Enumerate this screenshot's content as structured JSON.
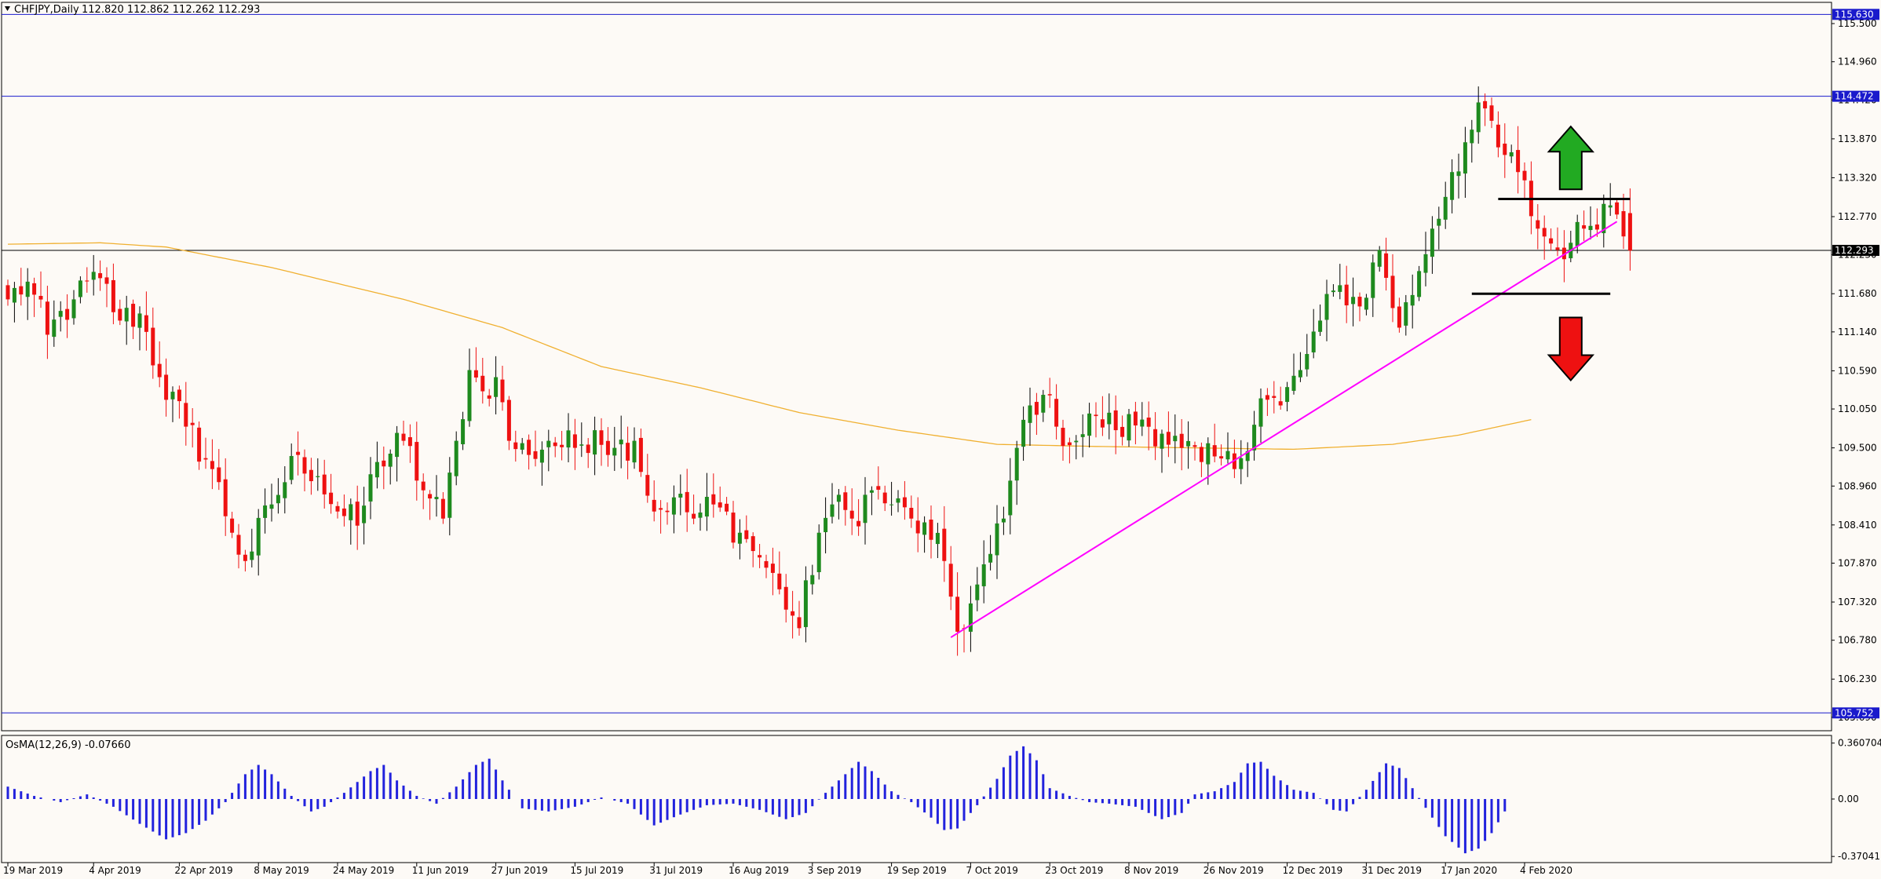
{
  "chart_data": {
    "type": "candlestick",
    "header": {
      "symbol": "CHFJPY,Daily",
      "ohlc": "112.820 112.862 112.262 112.293"
    },
    "indicator_label": "OsMA(12,26,9) -0.07660",
    "price_ylim": [
      105.5,
      115.8
    ],
    "price_ticks": [
      "115.500",
      "114.960",
      "114.420",
      "113.870",
      "113.320",
      "112.770",
      "112.230",
      "111.680",
      "111.140",
      "110.590",
      "110.050",
      "109.500",
      "108.960",
      "108.410",
      "107.870",
      "107.320",
      "106.780",
      "106.230",
      "105.690"
    ],
    "osma_ylim": [
      -0.41,
      0.41
    ],
    "osma_ticks": [
      "0.360704",
      "0.00",
      "-0.37041"
    ],
    "x_labels": [
      {
        "i": 0,
        "text": "19 Mar 2019"
      },
      {
        "i": 13,
        "text": "4 Apr 2019"
      },
      {
        "i": 26,
        "text": "22 Apr 2019"
      },
      {
        "i": 38,
        "text": "8 May 2019"
      },
      {
        "i": 50,
        "text": "24 May 2019"
      },
      {
        "i": 62,
        "text": "11 Jun 2019"
      },
      {
        "i": 74,
        "text": "27 Jun 2019"
      },
      {
        "i": 86,
        "text": "15 Jul 2019"
      },
      {
        "i": 98,
        "text": "31 Jul 2019"
      },
      {
        "i": 110,
        "text": "16 Aug 2019"
      },
      {
        "i": 122,
        "text": "3 Sep 2019"
      },
      {
        "i": 134,
        "text": "19 Sep 2019"
      },
      {
        "i": 146,
        "text": "7 Oct 2019"
      },
      {
        "i": 158,
        "text": "23 Oct 2019"
      },
      {
        "i": 170,
        "text": "8 Nov 2019"
      },
      {
        "i": 182,
        "text": "26 Nov 2019"
      },
      {
        "i": 194,
        "text": "12 Dec 2019"
      },
      {
        "i": 206,
        "text": "31 Dec 2019"
      },
      {
        "i": 218,
        "text": "17 Jan 2020"
      },
      {
        "i": 230,
        "text": "4 Feb 2020"
      }
    ],
    "levels": [
      {
        "name": "resistance-high",
        "value": 115.63,
        "label": "115.630",
        "color": "#1a1acc"
      },
      {
        "name": "resistance-mid",
        "value": 114.472,
        "label": "114.472",
        "color": "#1a1acc"
      },
      {
        "name": "current-price",
        "value": 112.293,
        "label": "112.293",
        "color": "#000000"
      },
      {
        "name": "support-low",
        "value": 105.752,
        "label": "105.752",
        "color": "#1a1acc"
      }
    ],
    "trendline": {
      "from": {
        "i": 143,
        "price": 106.82
      },
      "to": {
        "i": 244,
        "price": 112.7
      },
      "color": "#ff00ff"
    },
    "breakout_lines": [
      {
        "name": "upper-breakout-line",
        "from_i": 226,
        "to_i": 246,
        "price": 113.02
      },
      {
        "name": "lower-breakout-line",
        "from_i": 222,
        "to_i": 243,
        "price": 111.68
      }
    ],
    "arrows": [
      {
        "name": "bullish-arrow",
        "direction": "up",
        "i": 237,
        "price": 113.6,
        "color": "#22aa22"
      },
      {
        "name": "bearish-arrow",
        "direction": "down",
        "i": 237,
        "price": 110.9,
        "color": "#ee1111"
      }
    ],
    "ma_color": "#f0b030",
    "ma_points": [
      [
        0,
        112.38
      ],
      [
        14,
        112.4
      ],
      [
        24,
        112.34
      ],
      [
        40,
        112.05
      ],
      [
        60,
        111.6
      ],
      [
        75,
        111.2
      ],
      [
        90,
        110.65
      ],
      [
        105,
        110.35
      ],
      [
        120,
        110.0
      ],
      [
        135,
        109.75
      ],
      [
        150,
        109.55
      ],
      [
        165,
        109.52
      ],
      [
        180,
        109.5
      ],
      [
        195,
        109.48
      ],
      [
        210,
        109.55
      ],
      [
        220,
        109.68
      ],
      [
        231,
        109.9
      ]
    ],
    "up_color": "#1e8a1e",
    "down_color": "#ee1111",
    "osma_color": "#2222dd",
    "key_closes": [
      [
        0,
        111.6
      ],
      [
        3,
        111.85
      ],
      [
        6,
        111.1
      ],
      [
        10,
        111.6
      ],
      [
        14,
        111.9
      ],
      [
        17,
        111.3
      ],
      [
        20,
        111.4
      ],
      [
        23,
        110.5
      ],
      [
        27,
        109.8
      ],
      [
        31,
        109.2
      ],
      [
        34,
        108.3
      ],
      [
        36,
        107.9
      ],
      [
        40,
        108.7
      ],
      [
        44,
        109.4
      ],
      [
        47,
        109.1
      ],
      [
        50,
        108.6
      ],
      [
        53,
        108.4
      ],
      [
        56,
        109.3
      ],
      [
        60,
        109.6
      ],
      [
        63,
        108.9
      ],
      [
        66,
        108.5
      ],
      [
        68,
        109.6
      ],
      [
        70,
        110.6
      ],
      [
        72,
        110.3
      ],
      [
        74,
        110.5
      ],
      [
        76,
        109.6
      ],
      [
        79,
        109.4
      ],
      [
        82,
        109.6
      ],
      [
        86,
        109.5
      ],
      [
        89,
        109.75
      ],
      [
        92,
        109.5
      ],
      [
        95,
        109.6
      ],
      [
        98,
        108.6
      ],
      [
        101,
        108.8
      ],
      [
        104,
        108.5
      ],
      [
        107,
        108.7
      ],
      [
        111,
        108.3
      ],
      [
        114,
        107.95
      ],
      [
        117,
        107.5
      ],
      [
        120,
        106.95
      ],
      [
        123,
        108.3
      ],
      [
        125,
        108.7
      ],
      [
        128,
        108.5
      ],
      [
        131,
        108.9
      ],
      [
        134,
        108.7
      ],
      [
        137,
        108.5
      ],
      [
        140,
        108.2
      ],
      [
        142,
        107.9
      ],
      [
        144,
        106.9
      ],
      [
        146,
        107.3
      ],
      [
        149,
        108.0
      ],
      [
        151,
        108.5
      ],
      [
        153,
        109.5
      ],
      [
        155,
        110.1
      ],
      [
        157,
        110.25
      ],
      [
        159,
        109.8
      ],
      [
        162,
        109.6
      ],
      [
        165,
        109.95
      ],
      [
        168,
        109.75
      ],
      [
        172,
        109.9
      ],
      [
        175,
        109.7
      ],
      [
        178,
        109.5
      ],
      [
        181,
        109.3
      ],
      [
        184,
        109.35
      ],
      [
        186,
        109.2
      ],
      [
        190,
        110.2
      ],
      [
        193,
        110.1
      ],
      [
        196,
        110.6
      ],
      [
        199,
        111.3
      ],
      [
        202,
        111.8
      ],
      [
        205,
        111.5
      ],
      [
        208,
        112.3
      ],
      [
        211,
        111.2
      ],
      [
        214,
        112.0
      ],
      [
        216,
        112.6
      ],
      [
        219,
        113.4
      ],
      [
        222,
        114.0
      ],
      [
        224,
        114.3
      ],
      [
        226,
        113.75
      ],
      [
        229,
        113.4
      ],
      [
        232,
        112.6
      ],
      [
        235,
        112.3
      ],
      [
        237,
        112.4
      ],
      [
        239,
        112.6
      ],
      [
        242,
        112.95
      ],
      [
        244,
        112.8
      ],
      [
        246,
        112.29
      ]
    ],
    "osma_points": [
      [
        0,
        0.08
      ],
      [
        4,
        0.02
      ],
      [
        8,
        -0.02
      ],
      [
        12,
        0.03
      ],
      [
        16,
        -0.05
      ],
      [
        20,
        -0.16
      ],
      [
        24,
        -0.26
      ],
      [
        27,
        -0.22
      ],
      [
        30,
        -0.14
      ],
      [
        33,
        -0.02
      ],
      [
        36,
        0.16
      ],
      [
        38,
        0.22
      ],
      [
        40,
        0.16
      ],
      [
        43,
        0.02
      ],
      [
        46,
        -0.08
      ],
      [
        48,
        -0.05
      ],
      [
        51,
        0.04
      ],
      [
        55,
        0.18
      ],
      [
        57,
        0.22
      ],
      [
        59,
        0.12
      ],
      [
        62,
        0.02
      ],
      [
        65,
        -0.03
      ],
      [
        68,
        0.08
      ],
      [
        71,
        0.22
      ],
      [
        73,
        0.26
      ],
      [
        75,
        0.12
      ],
      [
        78,
        -0.06
      ],
      [
        82,
        -0.08
      ],
      [
        86,
        -0.05
      ],
      [
        90,
        0.01
      ],
      [
        94,
        -0.03
      ],
      [
        98,
        -0.17
      ],
      [
        102,
        -0.1
      ],
      [
        106,
        -0.04
      ],
      [
        110,
        -0.03
      ],
      [
        114,
        -0.07
      ],
      [
        118,
        -0.13
      ],
      [
        121,
        -0.09
      ],
      [
        124,
        0.04
      ],
      [
        127,
        0.16
      ],
      [
        129,
        0.24
      ],
      [
        131,
        0.18
      ],
      [
        134,
        0.05
      ],
      [
        137,
        -0.02
      ],
      [
        140,
        -0.12
      ],
      [
        142,
        -0.2
      ],
      [
        144,
        -0.19
      ],
      [
        147,
        -0.04
      ],
      [
        150,
        0.13
      ],
      [
        152,
        0.28
      ],
      [
        154,
        0.34
      ],
      [
        156,
        0.25
      ],
      [
        158,
        0.07
      ],
      [
        161,
        0.02
      ],
      [
        164,
        -0.02
      ],
      [
        167,
        -0.03
      ],
      [
        171,
        -0.05
      ],
      [
        175,
        -0.13
      ],
      [
        178,
        -0.09
      ],
      [
        180,
        0.03
      ],
      [
        183,
        0.05
      ],
      [
        186,
        0.11
      ],
      [
        188,
        0.23
      ],
      [
        190,
        0.24
      ],
      [
        192,
        0.15
      ],
      [
        195,
        0.06
      ],
      [
        198,
        0.04
      ],
      [
        201,
        -0.07
      ],
      [
        203,
        -0.08
      ],
      [
        206,
        0.06
      ],
      [
        209,
        0.23
      ],
      [
        211,
        0.2
      ],
      [
        213,
        0.07
      ],
      [
        216,
        -0.12
      ],
      [
        218,
        -0.24
      ],
      [
        221,
        -0.35
      ],
      [
        223,
        -0.32
      ],
      [
        225,
        -0.22
      ],
      [
        227,
        -0.08
      ]
    ]
  }
}
